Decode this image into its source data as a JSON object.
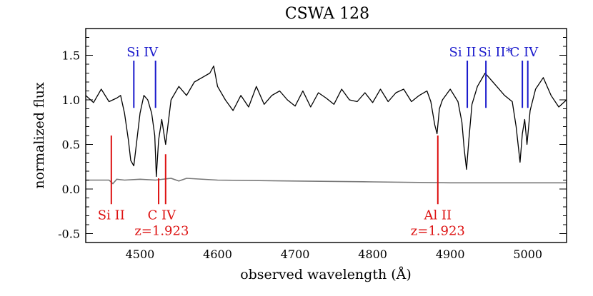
{
  "chart_data": {
    "type": "line",
    "title": "CSWA 128",
    "xlabel": "observed wavelength (Å)",
    "ylabel": "normalized flux",
    "xlim": [
      4430,
      5050
    ],
    "ylim": [
      -0.6,
      1.8
    ],
    "xticks": [
      4500,
      4600,
      4700,
      4800,
      4900,
      5000
    ],
    "yticks": [
      -0.5,
      0.0,
      0.5,
      1.0,
      1.5
    ],
    "ytick_labels": [
      "-0.5",
      "0.0",
      "0.5",
      "1.0",
      "1.5"
    ],
    "grid": false,
    "colors": {
      "spectrum": "#000000",
      "error": "#777777",
      "blue": "#1a1acc",
      "red": "#dd1111"
    },
    "series": [
      {
        "role": "spectrum",
        "x": [
          4430,
          4440,
          4450,
          4460,
          4470,
          4475,
          4480,
          4485,
          4488,
          4492,
          4496,
          4500,
          4505,
          4510,
          4515,
          4519,
          4521,
          4524,
          4528,
          4533,
          4540,
          4550,
          4560,
          4570,
          4580,
          4590,
          4595,
          4600,
          4610,
          4620,
          4630,
          4640,
          4650,
          4660,
          4670,
          4680,
          4690,
          4700,
          4710,
          4720,
          4730,
          4740,
          4750,
          4760,
          4770,
          4780,
          4790,
          4800,
          4810,
          4820,
          4830,
          4840,
          4850,
          4860,
          4870,
          4875,
          4880,
          4883,
          4886,
          4890,
          4900,
          4910,
          4915,
          4918,
          4921,
          4924,
          4928,
          4935,
          4945,
          4950,
          4960,
          4970,
          4980,
          4985,
          4990,
          4993,
          4996,
          4999,
          5003,
          5010,
          5020,
          5030,
          5040,
          5050
        ],
        "y": [
          1.05,
          0.97,
          1.12,
          0.98,
          1.02,
          1.05,
          0.85,
          0.55,
          0.32,
          0.26,
          0.55,
          0.85,
          1.05,
          1.0,
          0.85,
          0.6,
          0.14,
          0.55,
          0.78,
          0.5,
          1.0,
          1.15,
          1.05,
          1.2,
          1.25,
          1.3,
          1.38,
          1.15,
          1.0,
          0.88,
          1.05,
          0.92,
          1.15,
          0.95,
          1.05,
          1.1,
          1.0,
          0.93,
          1.1,
          0.92,
          1.08,
          1.02,
          0.95,
          1.12,
          1.0,
          0.98,
          1.08,
          0.97,
          1.12,
          0.98,
          1.08,
          1.12,
          0.98,
          1.05,
          1.1,
          0.98,
          0.72,
          0.62,
          0.9,
          1.0,
          1.12,
          0.98,
          0.75,
          0.45,
          0.22,
          0.55,
          0.95,
          1.15,
          1.3,
          1.25,
          1.15,
          1.05,
          0.98,
          0.7,
          0.3,
          0.62,
          0.78,
          0.5,
          0.88,
          1.12,
          1.25,
          1.05,
          0.92,
          1.0
        ]
      },
      {
        "role": "error",
        "x": [
          4430,
          4450,
          4460,
          4465,
          4470,
          4480,
          4500,
          4520,
          4540,
          4550,
          4560,
          4600,
          4700,
          4800,
          4900,
          5000,
          5050
        ],
        "y": [
          0.1,
          0.1,
          0.1,
          0.06,
          0.11,
          0.1,
          0.11,
          0.1,
          0.12,
          0.09,
          0.12,
          0.1,
          0.09,
          0.08,
          0.07,
          0.07,
          0.07
        ]
      }
    ],
    "annotations_blue": [
      {
        "wavelengths": [
          4492,
          4520
        ],
        "label": "Si IV",
        "label_x": 4503,
        "sub": ""
      },
      {
        "wavelengths": [
          4922
        ],
        "label": "Si II",
        "label_x": 4916,
        "sub": ""
      },
      {
        "wavelengths": [
          4946
        ],
        "label": "Si II*",
        "label_x": 4958,
        "sub": ""
      },
      {
        "wavelengths": [
          4993,
          5000
        ],
        "label": "C IV",
        "label_x": 4995,
        "sub": ""
      }
    ],
    "annotations_red": [
      {
        "wavelengths": [
          4463
        ],
        "label": "Si II",
        "label_x": 4463,
        "sub": ""
      },
      {
        "wavelengths": [
          4524,
          4533
        ],
        "label": "C IV",
        "label_x": 4528,
        "sub": "z=1.923"
      },
      {
        "wavelengths": [
          4884
        ],
        "label": "Al II",
        "label_x": 4884,
        "sub": "z=1.923"
      }
    ]
  }
}
